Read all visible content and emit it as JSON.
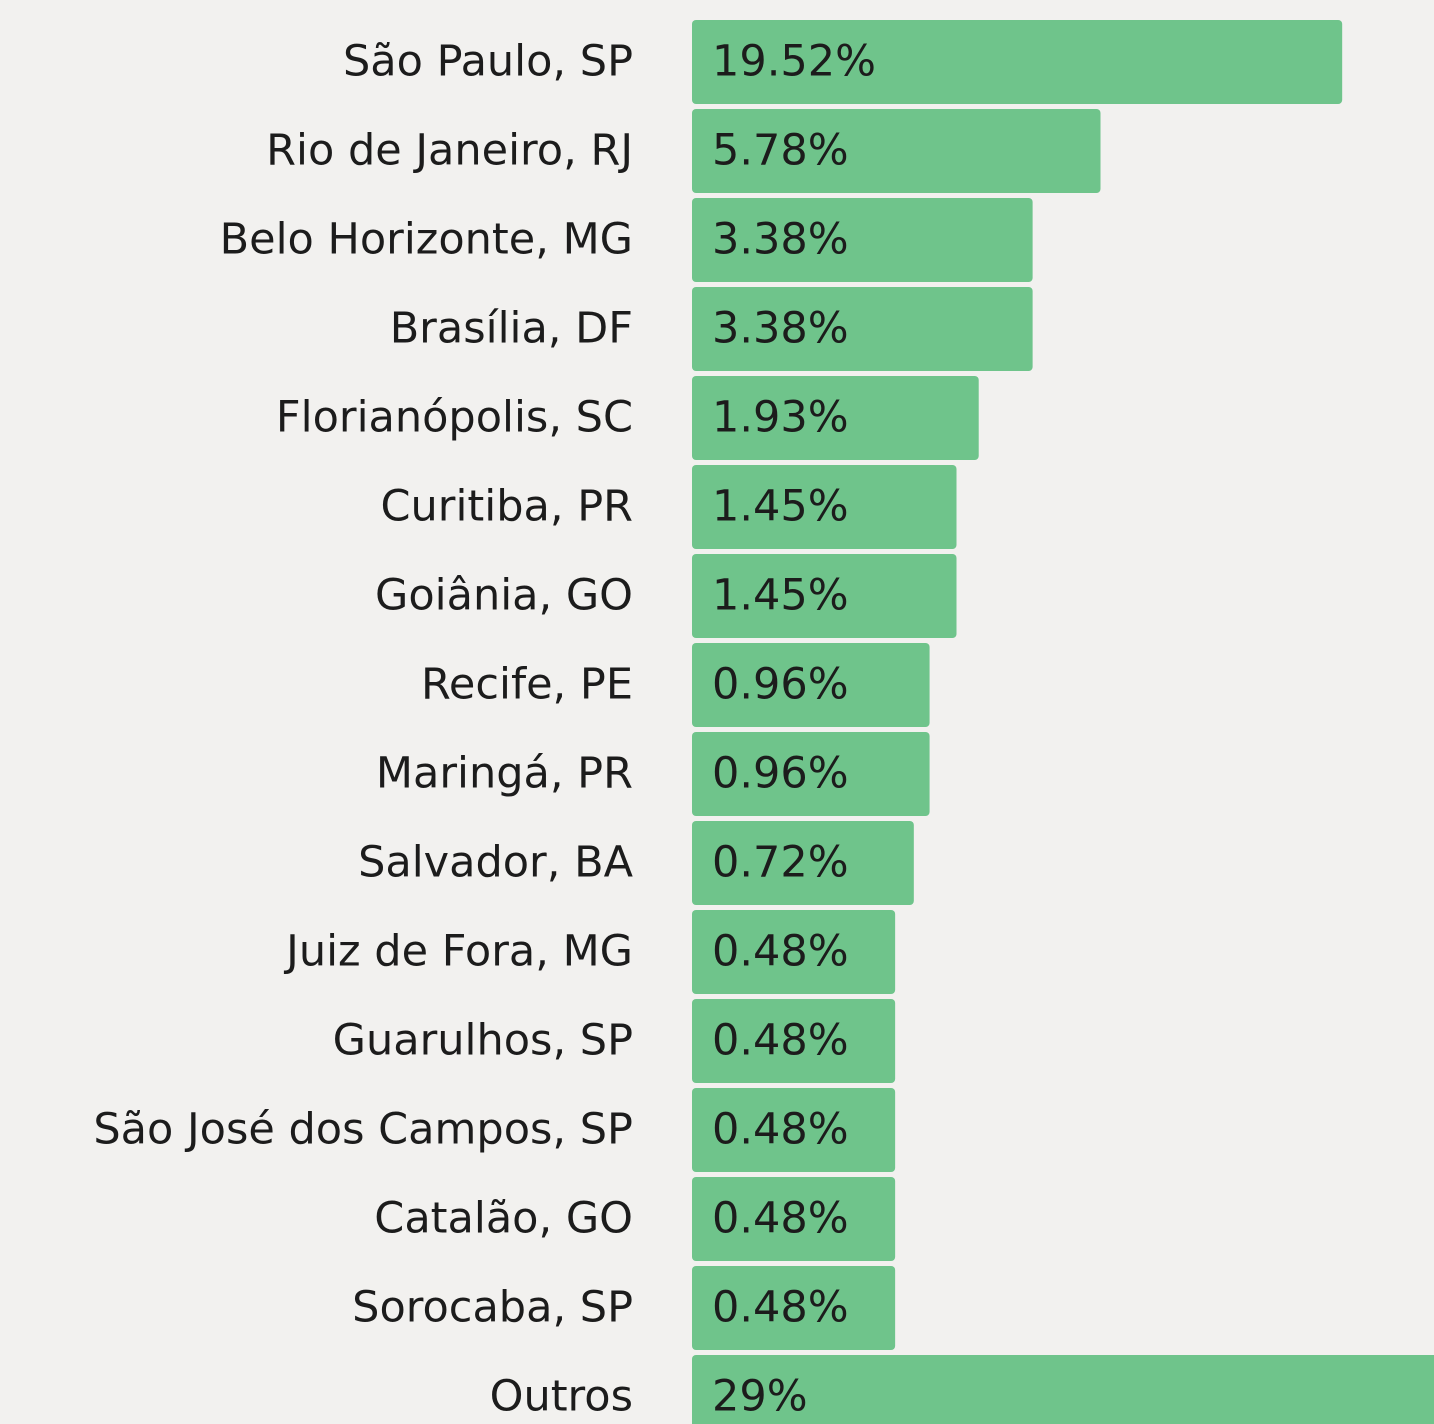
{
  "chart_data": {
    "type": "bar",
    "orientation": "horizontal",
    "color": "#6fc48b",
    "categories": [
      "São Paulo, SP",
      "Rio de Janeiro, RJ",
      "Belo Horizonte, MG",
      "Brasília, DF",
      "Florianópolis, SC",
      "Curitiba, PR",
      "Goiânia, GO",
      "Recife, PE",
      "Maringá, PR",
      "Salvador, BA",
      "Juiz de Fora, MG",
      "Guarulhos, SP",
      "São José dos Campos, SP",
      "Catalão, GO",
      "Sorocaba, SP",
      "Outros"
    ],
    "values": [
      19.52,
      5.78,
      3.38,
      3.38,
      1.93,
      1.45,
      1.45,
      0.96,
      0.96,
      0.72,
      0.48,
      0.48,
      0.48,
      0.48,
      0.48,
      29
    ],
    "value_labels": [
      "19.52%",
      "5.78%",
      "3.38%",
      "3.38%",
      "1.93%",
      "1.45%",
      "1.45%",
      "0.96%",
      "0.96%",
      "0.72%",
      "0.48%",
      "0.48%",
      "0.48%",
      "0.48%",
      "0.48%",
      "29%"
    ]
  }
}
